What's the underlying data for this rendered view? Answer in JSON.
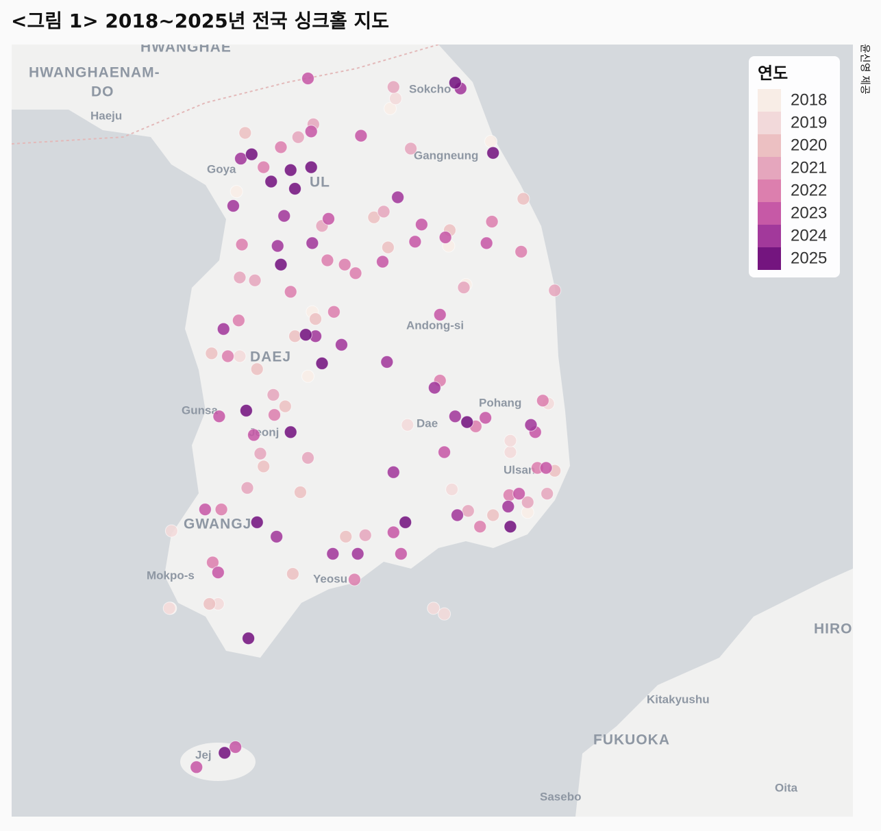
{
  "chart_data": {
    "type": "map-scatter",
    "title": "<그림 1> 2018~2025년 전국 싱크홀 지도",
    "credit": "윤신영 제공",
    "legend_title": "연도",
    "legend_position": "upper right",
    "map_labels": [
      "HWANGHAE",
      "HWANGHAENAM-",
      "DO",
      "Haeju",
      "Sokcho",
      "Gangneung",
      "Goya",
      "UL",
      "Andong-si",
      "DAEJ",
      "Pohang",
      "Gunsa",
      "Jeonj",
      "Dae",
      "Ulsan",
      "GWANGJ",
      "Mokpo-s",
      "Yeosu",
      "Jej",
      "HIROS",
      "Kitakyushu",
      "FUKUOKA",
      "Sasebo",
      "Oita"
    ],
    "series": [
      {
        "name": "2018",
        "color": "#f8ede6",
        "lon": [
          127.99,
          128.92,
          126.57,
          128.53,
          127.27,
          125.96,
          129.26,
          127.23,
          128.69
        ],
        "lat": [
          38.08,
          37.85,
          37.5,
          37.12,
          36.66,
          34.59,
          35.26,
          36.21,
          36.85
        ]
      },
      {
        "name": "2019",
        "color": "#f2d9da",
        "lon": [
          128.04,
          126.6,
          128.39,
          128.49,
          126.4,
          125.95,
          129.1,
          128.56,
          125.97,
          128.15,
          129.1,
          129.45
        ],
        "lat": [
          38.15,
          36.35,
          34.59,
          34.55,
          34.62,
          34.59,
          35.68,
          35.42,
          35.13,
          35.87,
          35.76,
          36.02
        ]
      },
      {
        "name": "2020",
        "color": "#ecc0c2",
        "lon": [
          126.65,
          127.84,
          128.54,
          127.97,
          127.11,
          126.34,
          126.76,
          127.02,
          126.82,
          127.16,
          127.09,
          126.32,
          129.51,
          128.94,
          129.22,
          127.3,
          127.58
        ],
        "lat": [
          37.91,
          37.32,
          37.23,
          37.11,
          36.49,
          36.37,
          36.26,
          36.0,
          35.58,
          35.4,
          34.83,
          34.62,
          35.55,
          35.24,
          37.45,
          36.61,
          35.09
        ]
      },
      {
        "name": "2021",
        "color": "#e5a6bd",
        "lon": [
          126.74,
          126.6,
          127.14,
          128.02,
          127.28,
          127.93,
          127.36,
          126.91,
          126.79,
          127.23,
          126.67,
          127.76,
          128.71,
          129.44,
          129.26,
          128.18,
          128.67,
          129.51
        ],
        "lat": [
          36.88,
          36.9,
          37.88,
          38.23,
          37.97,
          37.36,
          37.26,
          36.08,
          35.67,
          35.64,
          35.43,
          35.1,
          35.27,
          35.39,
          35.33,
          37.8,
          36.83,
          36.81
        ]
      },
      {
        "name": "2022",
        "color": "#dc7fae",
        "lon": [
          126.98,
          126.82,
          126.62,
          127.57,
          127.67,
          127.41,
          127.47,
          127.07,
          126.59,
          126.49,
          126.43,
          126.35,
          128.93,
          129.2,
          129.4,
          129.09,
          129.35,
          128.82,
          128.45,
          128.78,
          126.92,
          127.66
        ],
        "lat": [
          37.81,
          37.67,
          37.13,
          36.99,
          36.93,
          37.02,
          36.66,
          36.8,
          36.6,
          36.35,
          35.28,
          34.91,
          37.29,
          37.08,
          36.04,
          35.38,
          35.57,
          35.16,
          36.18,
          35.86,
          35.94,
          34.79
        ]
      },
      {
        "name": "2023",
        "color": "#c659a6",
        "lon": [
          127.23,
          127.26,
          127.72,
          128.28,
          128.5,
          128.88,
          128.22,
          127.42,
          127.92,
          128.45,
          128.49,
          128.87,
          129.33,
          126.56,
          126.2,
          126.41,
          126.28,
          126.4,
          126.73,
          128.02,
          128.09,
          129.18,
          129.43
        ],
        "lat": [
          38.29,
          37.92,
          37.89,
          37.27,
          37.18,
          37.14,
          37.15,
          37.31,
          37.01,
          36.64,
          35.68,
          35.92,
          35.82,
          33.62,
          33.48,
          35.93,
          35.28,
          34.84,
          35.8,
          35.12,
          34.97,
          35.39,
          35.57
        ]
      },
      {
        "name": "2024",
        "color": "#a2399b",
        "lon": [
          126.61,
          126.54,
          126.95,
          127.27,
          127.01,
          126.45,
          127.3,
          128.4,
          128.59,
          129.29,
          127.54,
          127.46,
          127.69,
          126.94,
          129.08,
          128.61,
          128.64,
          127.96,
          128.02,
          128.06
        ],
        "lat": [
          37.73,
          37.4,
          37.12,
          37.14,
          37.33,
          36.54,
          36.49,
          36.13,
          35.93,
          35.87,
          36.43,
          34.97,
          34.97,
          35.09,
          35.3,
          35.24,
          38.22,
          36.31,
          35.54,
          37.46
        ]
      },
      {
        "name": "2025",
        "color": "#74157f",
        "lon": [
          126.71,
          126.89,
          127.07,
          127.26,
          127.11,
          126.98,
          126.66,
          127.21,
          127.36,
          128.59,
          128.94,
          127.07,
          128.13,
          128.7,
          126.76,
          129.1,
          126.68,
          126.46
        ],
        "lat": [
          37.76,
          37.57,
          37.65,
          37.67,
          37.52,
          36.99,
          35.97,
          36.5,
          36.3,
          38.26,
          37.77,
          35.82,
          35.19,
          35.89,
          35.19,
          35.16,
          34.38,
          33.58
        ]
      }
    ]
  }
}
